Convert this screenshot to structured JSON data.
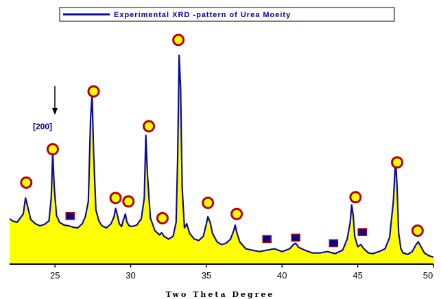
{
  "chart_data": {
    "type": "line",
    "title": "",
    "legend": {
      "label": "Experimental XRD -pattern of Urea Moeity",
      "position": "top"
    },
    "xlabel": "Two Theta Degree",
    "ylabel": "",
    "xlim": [
      22,
      50
    ],
    "ylim": [
      0,
      340
    ],
    "xticks": [
      25,
      30,
      35,
      40,
      45,
      50
    ],
    "grid": false,
    "colors": {
      "line": "#0a0a9a",
      "fill": "#ffff00",
      "circle_marker_fill": "#ffff00",
      "circle_marker_stroke": "#b00000",
      "square_marker_fill": "#000090",
      "square_marker_stroke": "#b00000"
    },
    "series": [
      {
        "x": [
          22.0,
          22.2,
          22.5,
          22.7,
          22.9,
          23.05,
          23.2,
          23.4,
          23.7,
          24.0,
          24.3,
          24.6,
          24.75,
          24.85,
          24.95,
          25.1,
          25.3,
          25.6,
          25.9,
          26.2,
          26.5,
          26.8,
          27.0,
          27.2,
          27.35,
          27.45,
          27.55,
          27.7,
          27.9,
          28.1,
          28.4,
          28.7,
          28.9,
          29.0,
          29.1,
          29.25,
          29.4,
          29.5,
          29.65,
          29.75,
          29.9,
          30.1,
          30.4,
          30.7,
          30.9,
          31.0,
          31.1,
          31.3,
          31.6,
          31.9,
          32.05,
          32.2,
          32.5,
          32.8,
          33.0,
          33.1,
          33.2,
          33.3,
          33.4,
          33.55,
          33.7,
          33.9,
          34.2,
          34.5,
          34.8,
          35.0,
          35.1,
          35.25,
          35.4,
          35.7,
          36.0,
          36.3,
          36.6,
          36.8,
          36.9,
          37.0,
          37.2,
          37.6,
          38.0,
          38.5,
          39.0,
          39.5,
          40.0,
          40.5,
          40.75,
          40.9,
          41.1,
          41.5,
          42.0,
          42.5,
          43.0,
          43.5,
          44.0,
          44.3,
          44.5,
          44.6,
          44.7,
          44.8,
          45.0,
          45.2,
          45.4,
          45.7,
          46.0,
          46.4,
          46.8,
          47.1,
          47.35,
          47.5,
          47.6,
          47.7,
          47.85,
          48.0,
          48.3,
          48.6,
          48.85,
          49.0,
          49.15,
          49.4,
          49.7,
          50.0
        ],
        "y": [
          65,
          62,
          60,
          66,
          72,
          95,
          82,
          64,
          58,
          55,
          57,
          62,
          95,
          160,
          110,
          70,
          60,
          56,
          55,
          53,
          52,
          58,
          68,
          90,
          210,
          245,
          160,
          78,
          62,
          55,
          52,
          58,
          68,
          80,
          72,
          58,
          54,
          62,
          72,
          60,
          55,
          54,
          56,
          65,
          95,
          185,
          130,
          66,
          48,
          42,
          45,
          40,
          36,
          40,
          60,
          150,
          300,
          250,
          110,
          52,
          58,
          44,
          36,
          34,
          40,
          58,
          68,
          60,
          44,
          32,
          28,
          30,
          36,
          48,
          56,
          46,
          32,
          22,
          20,
          18,
          20,
          22,
          18,
          22,
          28,
          30,
          24,
          20,
          16,
          16,
          18,
          15,
          20,
          36,
          60,
          85,
          70,
          40,
          25,
          28,
          22,
          16,
          15,
          18,
          22,
          38,
          90,
          150,
          110,
          45,
          22,
          16,
          14,
          18,
          28,
          32,
          26,
          16,
          12,
          10
        ]
      }
    ],
    "annotations": {
      "arrow_label": "[200]",
      "circle_peaks": [
        {
          "x": 23.1,
          "y": 117
        },
        {
          "x": 24.85,
          "y": 165
        },
        {
          "x": 27.55,
          "y": 248
        },
        {
          "x": 29.0,
          "y": 95
        },
        {
          "x": 29.85,
          "y": 90
        },
        {
          "x": 31.2,
          "y": 198
        },
        {
          "x": 32.1,
          "y": 66
        },
        {
          "x": 33.15,
          "y": 322
        },
        {
          "x": 35.1,
          "y": 88
        },
        {
          "x": 37.0,
          "y": 72
        },
        {
          "x": 44.85,
          "y": 96
        },
        {
          "x": 47.6,
          "y": 146
        },
        {
          "x": 48.95,
          "y": 48
        }
      ],
      "square_peaks": [
        {
          "x": 26.0,
          "y": 69
        },
        {
          "x": 39.0,
          "y": 36
        },
        {
          "x": 40.9,
          "y": 38
        },
        {
          "x": 43.4,
          "y": 30
        },
        {
          "x": 45.3,
          "y": 46
        }
      ]
    }
  }
}
